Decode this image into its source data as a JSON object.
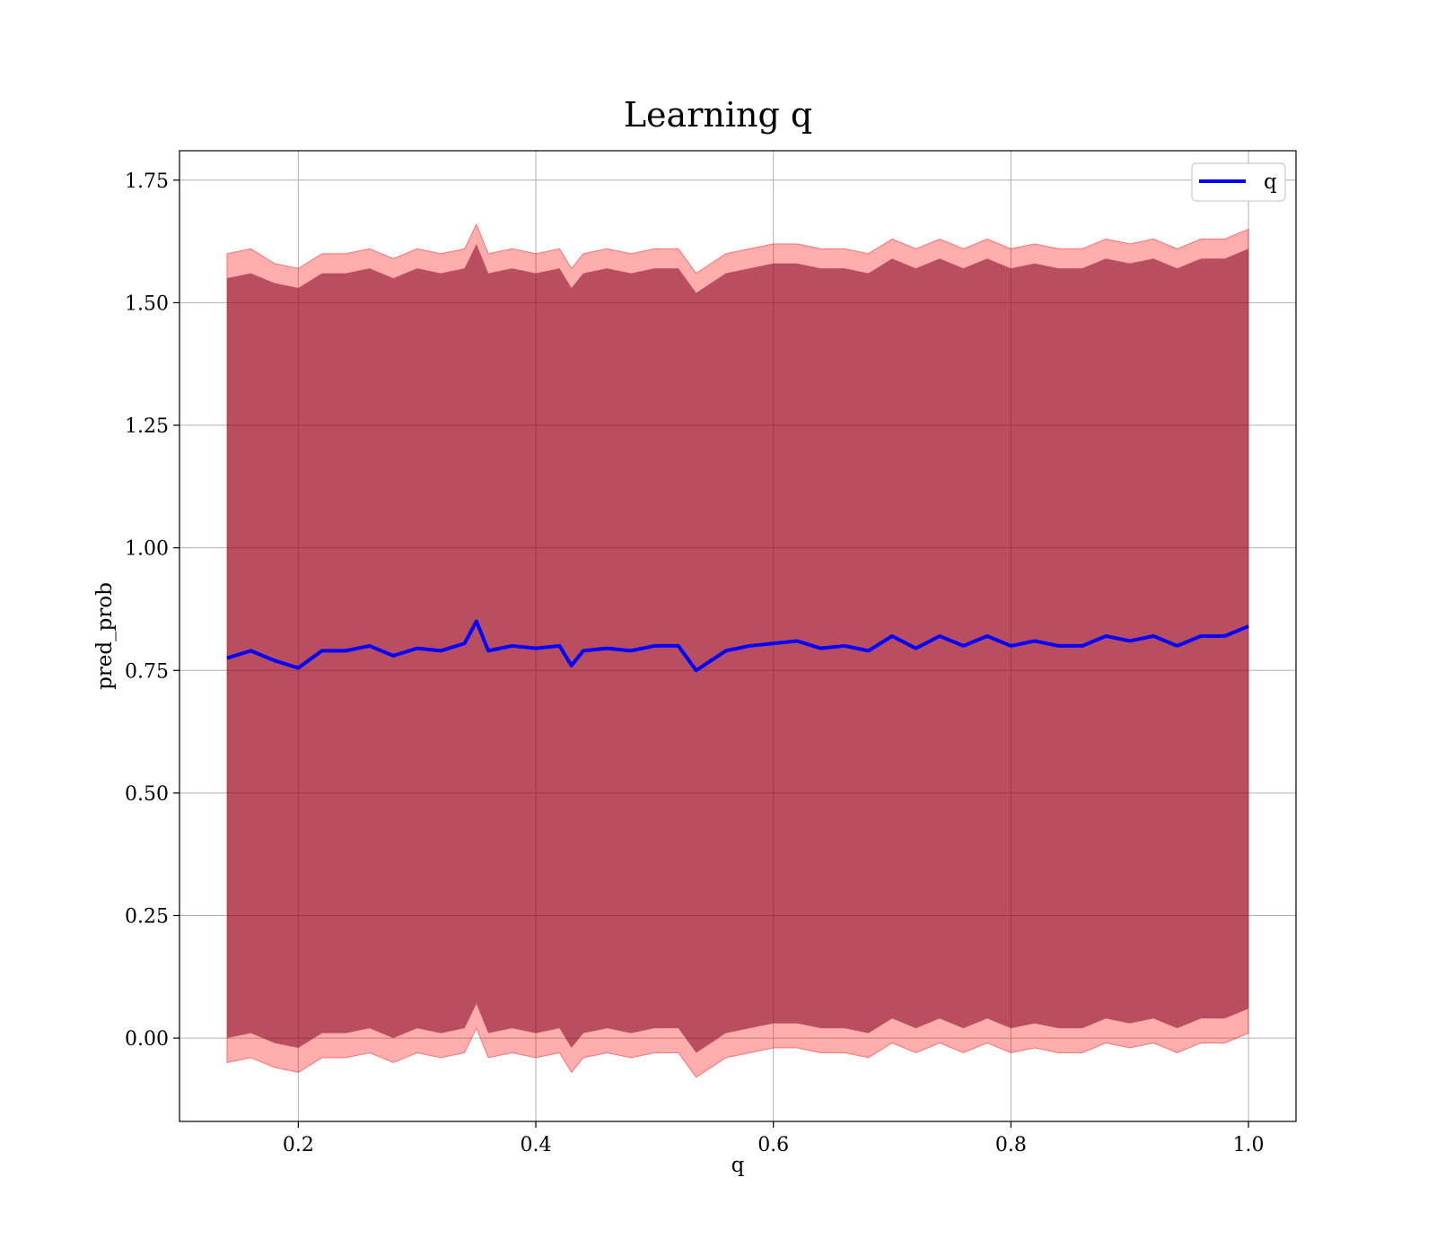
{
  "chart_data": {
    "type": "line",
    "title": "Learning q",
    "xlabel": "q",
    "ylabel": "pred_prob",
    "xlim": [
      0.1,
      1.04
    ],
    "ylim": [
      -0.17,
      1.81
    ],
    "grid": true,
    "legend": {
      "placement": "top-right",
      "entries": [
        "q"
      ]
    },
    "x_ticks": [
      "0.2",
      "0.4",
      "0.6",
      "0.8",
      "1.0"
    ],
    "x_tick_values": [
      0.2,
      0.4,
      0.6,
      0.8,
      1.0
    ],
    "y_ticks": [
      "0.00",
      "0.25",
      "0.50",
      "0.75",
      "1.00",
      "1.25",
      "1.50",
      "1.75"
    ],
    "y_tick_values": [
      0.0,
      0.25,
      0.5,
      0.75,
      1.0,
      1.25,
      1.5,
      1.75
    ],
    "series": [
      {
        "name": "q",
        "color": "#0000ff",
        "x": [
          0.14,
          0.16,
          0.18,
          0.2,
          0.22,
          0.24,
          0.26,
          0.28,
          0.3,
          0.32,
          0.34,
          0.35,
          0.36,
          0.38,
          0.4,
          0.42,
          0.43,
          0.44,
          0.46,
          0.48,
          0.5,
          0.52,
          0.535,
          0.56,
          0.58,
          0.6,
          0.62,
          0.64,
          0.66,
          0.68,
          0.7,
          0.72,
          0.74,
          0.76,
          0.78,
          0.8,
          0.82,
          0.84,
          0.86,
          0.88,
          0.9,
          0.92,
          0.94,
          0.96,
          0.98,
          1.0
        ],
        "y": [
          0.775,
          0.79,
          0.77,
          0.755,
          0.79,
          0.79,
          0.8,
          0.78,
          0.795,
          0.79,
          0.805,
          0.85,
          0.79,
          0.8,
          0.795,
          0.8,
          0.76,
          0.79,
          0.795,
          0.79,
          0.8,
          0.8,
          0.75,
          0.79,
          0.8,
          0.805,
          0.81,
          0.795,
          0.8,
          0.79,
          0.82,
          0.795,
          0.82,
          0.8,
          0.82,
          0.8,
          0.81,
          0.8,
          0.8,
          0.82,
          0.81,
          0.82,
          0.8,
          0.82,
          0.82,
          0.84
        ],
        "band_outer_upper": [
          1.6,
          1.61,
          1.58,
          1.57,
          1.6,
          1.6,
          1.61,
          1.59,
          1.61,
          1.6,
          1.61,
          1.66,
          1.6,
          1.61,
          1.6,
          1.61,
          1.57,
          1.6,
          1.61,
          1.6,
          1.61,
          1.61,
          1.56,
          1.6,
          1.61,
          1.62,
          1.62,
          1.61,
          1.61,
          1.6,
          1.63,
          1.61,
          1.63,
          1.61,
          1.63,
          1.61,
          1.62,
          1.61,
          1.61,
          1.63,
          1.62,
          1.63,
          1.61,
          1.63,
          1.63,
          1.65
        ],
        "band_outer_lower": [
          -0.05,
          -0.04,
          -0.06,
          -0.07,
          -0.04,
          -0.04,
          -0.03,
          -0.05,
          -0.03,
          -0.04,
          -0.03,
          0.02,
          -0.04,
          -0.03,
          -0.04,
          -0.03,
          -0.07,
          -0.04,
          -0.03,
          -0.04,
          -0.03,
          -0.03,
          -0.08,
          -0.04,
          -0.03,
          -0.02,
          -0.02,
          -0.03,
          -0.03,
          -0.04,
          -0.01,
          -0.03,
          -0.01,
          -0.03,
          -0.01,
          -0.03,
          -0.02,
          -0.03,
          -0.03,
          -0.01,
          -0.02,
          -0.01,
          -0.03,
          -0.01,
          -0.01,
          0.01
        ],
        "band_inner_upper": [
          1.55,
          1.56,
          1.54,
          1.53,
          1.56,
          1.56,
          1.57,
          1.55,
          1.57,
          1.56,
          1.57,
          1.62,
          1.56,
          1.57,
          1.56,
          1.57,
          1.53,
          1.56,
          1.57,
          1.56,
          1.57,
          1.57,
          1.52,
          1.56,
          1.57,
          1.58,
          1.58,
          1.57,
          1.57,
          1.56,
          1.59,
          1.57,
          1.59,
          1.57,
          1.59,
          1.57,
          1.58,
          1.57,
          1.57,
          1.59,
          1.58,
          1.59,
          1.57,
          1.59,
          1.59,
          1.61
        ],
        "band_inner_lower": [
          0.0,
          0.01,
          -0.01,
          -0.02,
          0.01,
          0.01,
          0.02,
          0.0,
          0.02,
          0.01,
          0.02,
          0.07,
          0.01,
          0.02,
          0.01,
          0.02,
          -0.02,
          0.01,
          0.02,
          0.01,
          0.02,
          0.02,
          -0.03,
          0.01,
          0.02,
          0.03,
          0.03,
          0.02,
          0.02,
          0.01,
          0.04,
          0.02,
          0.04,
          0.02,
          0.04,
          0.02,
          0.03,
          0.02,
          0.02,
          0.04,
          0.03,
          0.04,
          0.02,
          0.04,
          0.04,
          0.06
        ]
      }
    ],
    "colors": {
      "line": "#0000ff",
      "band_outer": "#ff0000",
      "band_inner": "#800020",
      "grid": "#b0b0b0"
    }
  }
}
